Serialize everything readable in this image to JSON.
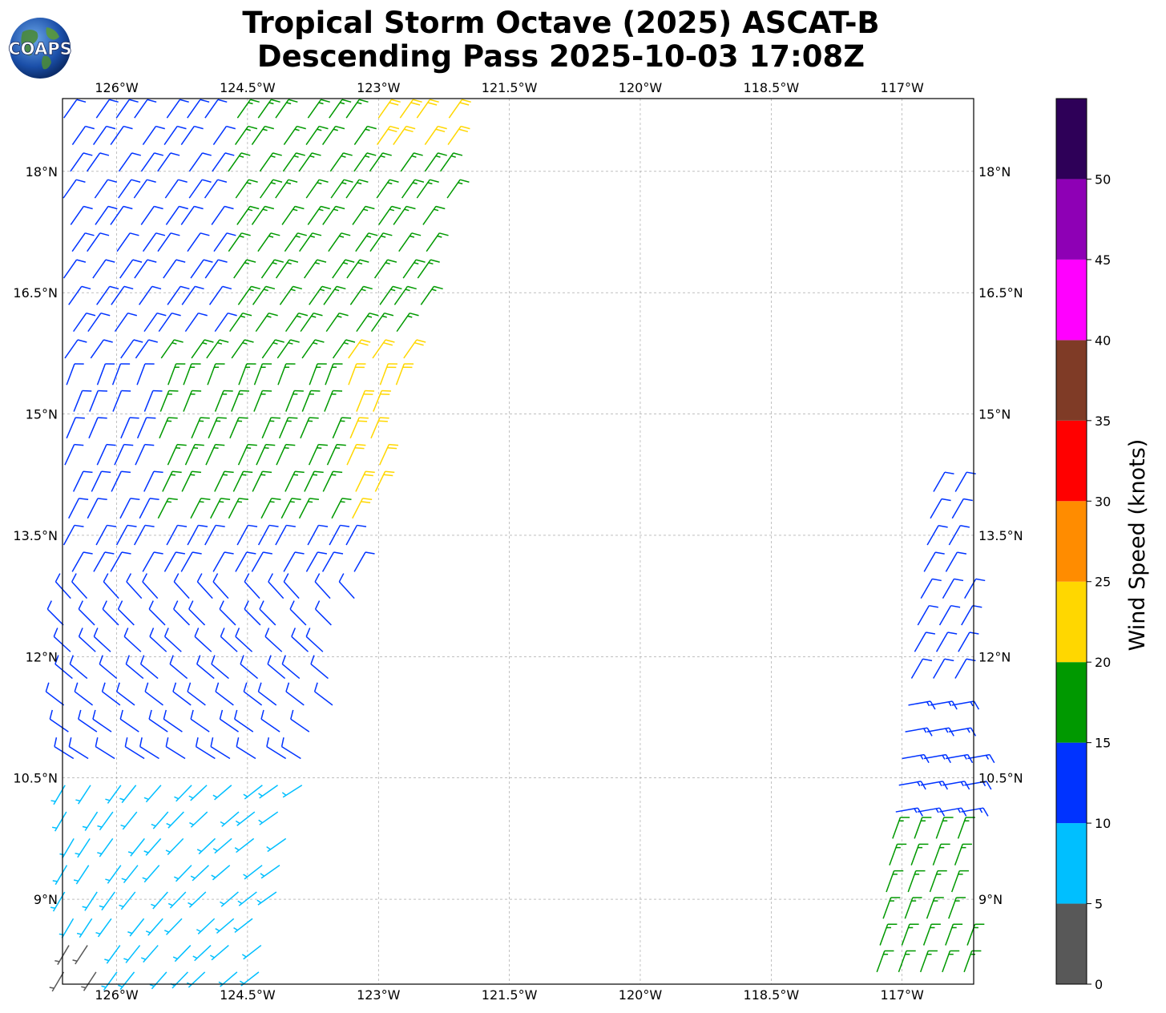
{
  "title_line1": "Tropical Storm Octave (2025) ASCAT-B",
  "title_line2": "Descending Pass 2025-10-03 17:08Z",
  "logo_text": "COAPS",
  "map": {
    "lon_range": [
      -126.62,
      -116.18
    ],
    "lat_range": [
      7.95,
      18.9
    ],
    "lon_ticks": [
      -126,
      -124.5,
      -123,
      -121.5,
      -120,
      -118.5,
      -117
    ],
    "lon_tick_labels": [
      "126°W",
      "124.5°W",
      "123°W",
      "121.5°W",
      "120°W",
      "118.5°W",
      "117°W"
    ],
    "lat_ticks": [
      9,
      10.5,
      12,
      13.5,
      15,
      16.5,
      18
    ],
    "lat_tick_labels": [
      "9°N",
      "10.5°N",
      "12°N",
      "13.5°N",
      "15°N",
      "16.5°N",
      "18°N"
    ],
    "gridlines": true
  },
  "colorbar": {
    "label": "Wind Speed (knots)",
    "bounds": [
      0,
      5,
      10,
      15,
      20,
      25,
      30,
      35,
      40,
      45,
      50,
      55
    ],
    "tick_labels": [
      "0",
      "5",
      "10",
      "15",
      "20",
      "25",
      "30",
      "35",
      "40",
      "45",
      "50"
    ],
    "colors": [
      "#585858",
      "#00bfff",
      "#0033ff",
      "#009900",
      "#ffd700",
      "#ff8c00",
      "#ff0000",
      "#7f3b26",
      "#ff00ff",
      "#8e00b5",
      "#2e0058"
    ]
  },
  "chart_data": {
    "type": "wind_barbs",
    "title": "Tropical Storm Octave (2025) ASCAT-B Descending Pass 2025-10-03 17:08Z",
    "units": "knots",
    "swaths": [
      {
        "name": "western swath",
        "description_region": {
          "lon": [
            -126.62,
            -121.6
          ],
          "lat": [
            7.95,
            18.9
          ]
        },
        "speed_bands_by_lat": [
          {
            "lat_range": [
              16.0,
              18.9
            ],
            "west_part_kt": 12,
            "east_part_kt": 17,
            "northeast_edge_kt": 22
          },
          {
            "lat_range": [
              13.5,
              15.5
            ],
            "center_kt": 17,
            "east_edge_kt": 22
          },
          {
            "lat_range": [
              10.5,
              13.5
            ],
            "kt": 12
          },
          {
            "lat_range": [
              7.95,
              10.5
            ],
            "kt": 7,
            "southwest_corner_kt": 3
          }
        ]
      },
      {
        "name": "eastern swath",
        "description_region": {
          "lon": [
            -117.3,
            -116.18
          ],
          "lat": [
            7.95,
            14.4
          ]
        },
        "speed_bands_by_lat": [
          {
            "lat_range": [
              11.5,
              14.4
            ],
            "kt": 12
          },
          {
            "lat_range": [
              10.0,
              11.5
            ],
            "kt": 14
          },
          {
            "lat_range": [
              7.95,
              10.0
            ],
            "kt": 17
          }
        ]
      }
    ]
  }
}
